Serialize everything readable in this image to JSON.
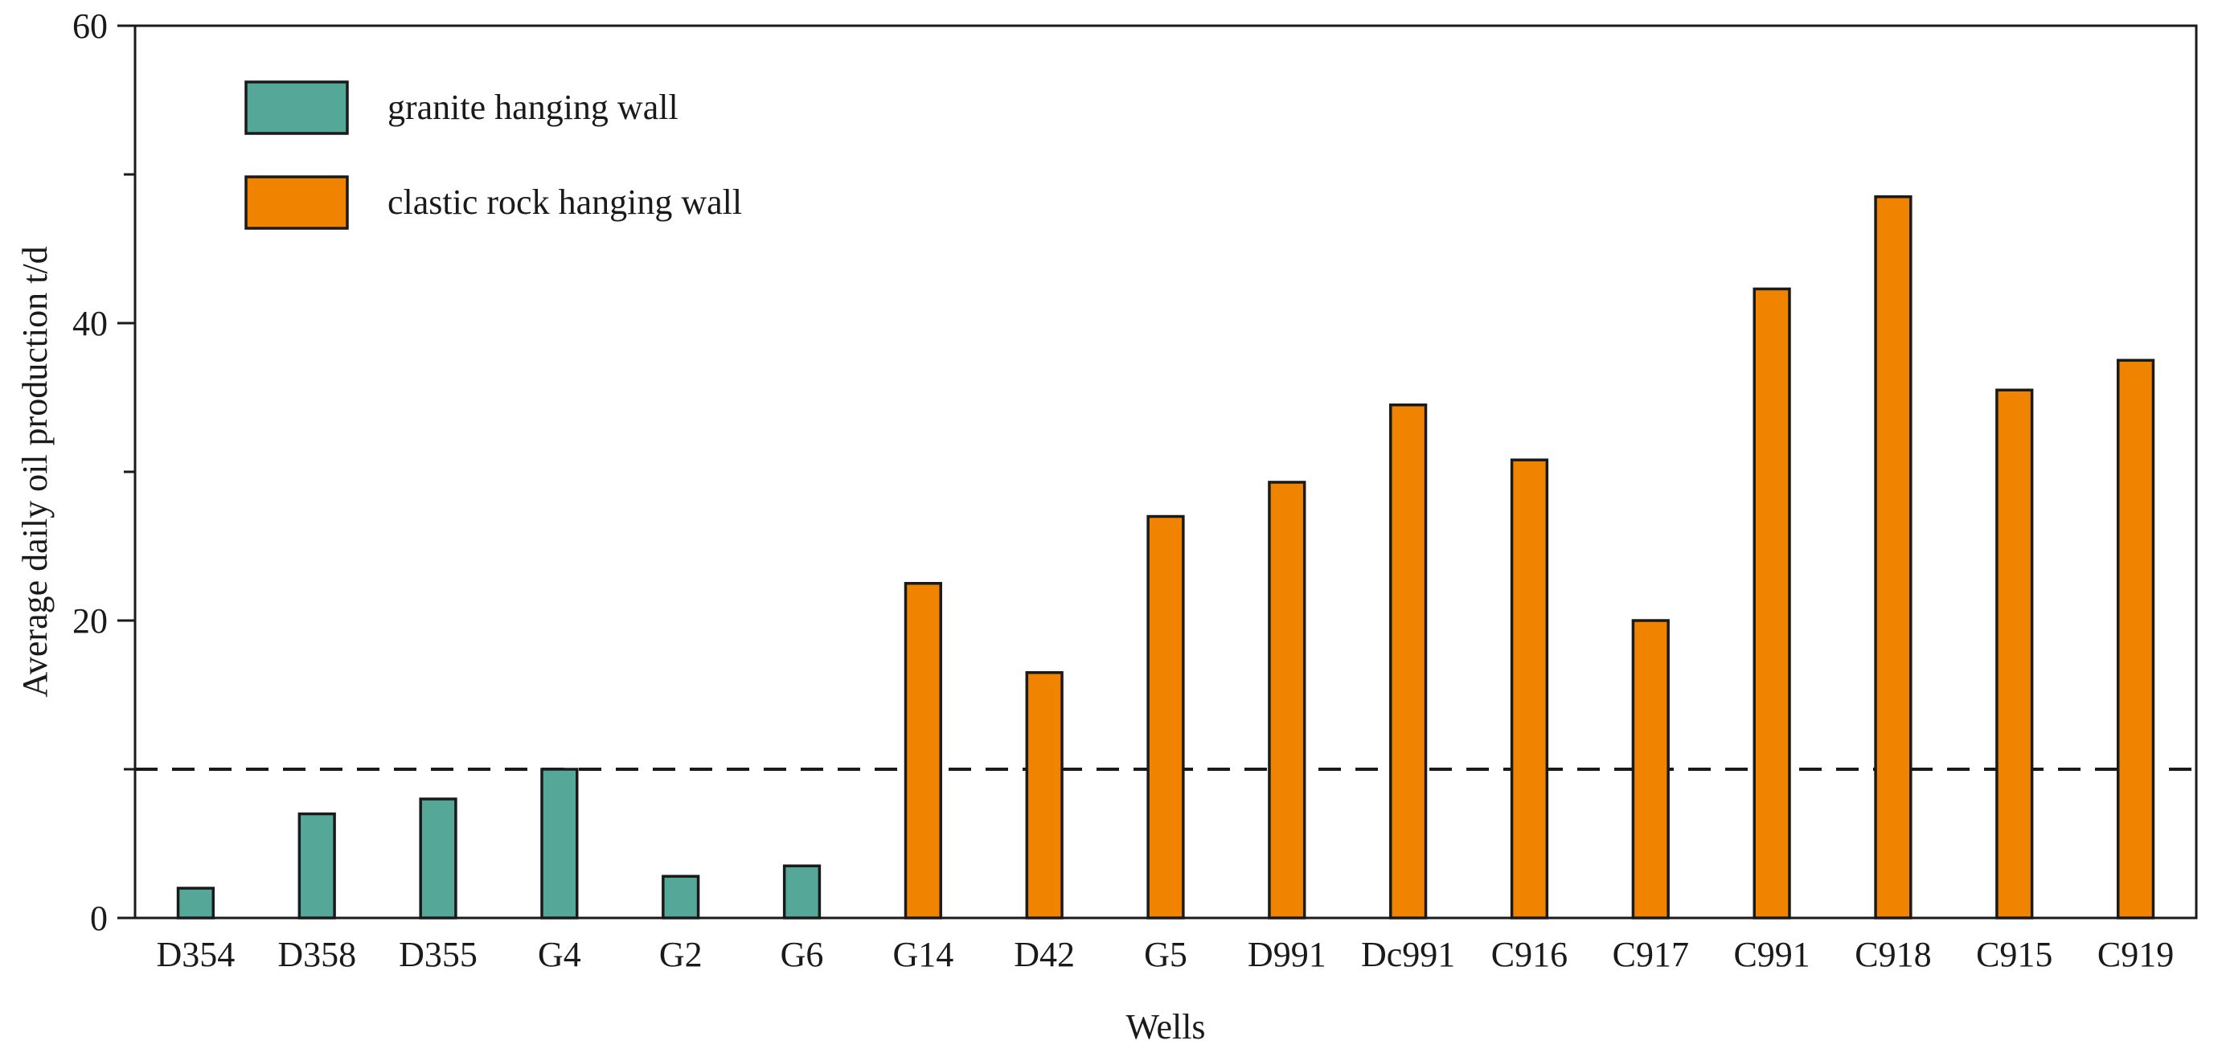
{
  "chart_data": {
    "type": "bar",
    "title": "",
    "xlabel": "Wells",
    "ylabel": "Average daily oil production t/d",
    "ylim": [
      0,
      60
    ],
    "yticks_major": [
      0,
      20,
      40,
      60
    ],
    "yticks_minor": [
      10,
      30,
      50
    ],
    "grid": false,
    "legend_position": "top-left",
    "reference_line": {
      "value": 10,
      "style": "dashed",
      "color": "#1a1a1a"
    },
    "categories": [
      "D354",
      "D358",
      "D355",
      "G4",
      "G2",
      "G6",
      "G14",
      "D42",
      "G5",
      "D991",
      "Dc991",
      "C916",
      "C917",
      "C991",
      "C918",
      "C915",
      "C919"
    ],
    "series": [
      {
        "name": "granite hanging wall",
        "color": "#55a898",
        "values": [
          2,
          7,
          8,
          10,
          2.8,
          3.5,
          null,
          null,
          null,
          null,
          null,
          null,
          null,
          null,
          null,
          null,
          null
        ]
      },
      {
        "name": "clastic rock hanging wall",
        "color": "#f08300",
        "values": [
          null,
          null,
          null,
          null,
          null,
          null,
          22.5,
          16.5,
          27,
          29.3,
          34.5,
          30.8,
          20,
          42.3,
          48.5,
          35.5,
          37.5
        ]
      }
    ]
  }
}
